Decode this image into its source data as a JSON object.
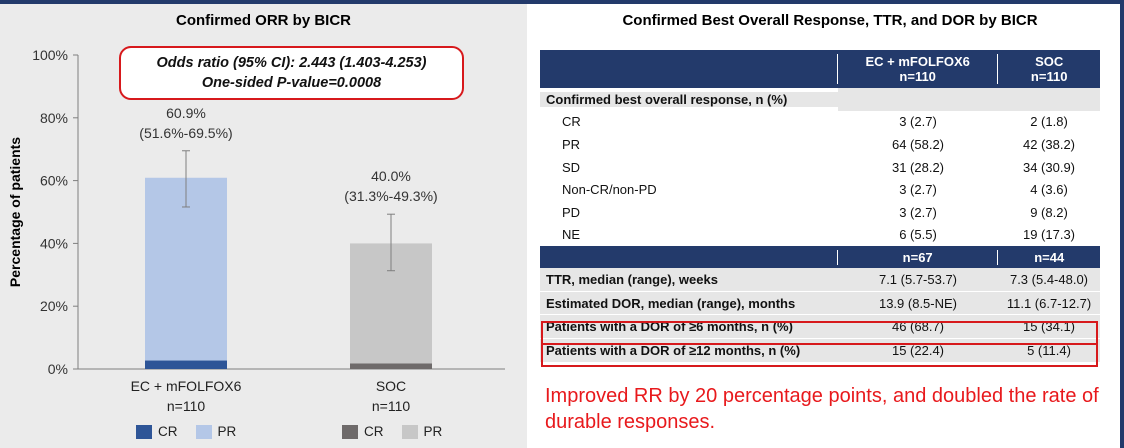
{
  "left": {
    "title": "Confirmed ORR by BICR",
    "odds_line1": "Odds ratio (95% CI): 2.443 (1.403-4.253)",
    "odds_line2": "One-sided P-value=0.0008",
    "legend_left": [
      "CR",
      "PR"
    ],
    "legend_right": [
      "CR",
      "PR"
    ]
  },
  "chart_data": {
    "type": "bar",
    "stacked": true,
    "title": "Confirmed ORR by BICR",
    "ylabel": "Percentage of patients",
    "ylim": [
      0,
      100
    ],
    "yticks": [
      "0%",
      "20%",
      "40%",
      "60%",
      "80%",
      "100%"
    ],
    "categories": [
      "EC + mFOLFOX6",
      "SOC"
    ],
    "category_sublabels": [
      "n=110",
      "n=110"
    ],
    "series": [
      {
        "name": "CR",
        "values": [
          2.7,
          1.8
        ],
        "colors": [
          "#2e5597",
          "#6e6a6a"
        ]
      },
      {
        "name": "PR",
        "values": [
          58.2,
          38.2
        ],
        "colors": [
          "#b4c7e7",
          "#c7c7c7"
        ]
      }
    ],
    "totals": [
      60.9,
      40.0
    ],
    "total_labels": [
      "60.9%",
      "40.0%"
    ],
    "ci": [
      [
        51.6,
        69.5
      ],
      [
        31.3,
        49.3
      ]
    ],
    "ci_labels": [
      "(51.6%-69.5%)",
      "(31.3%-49.3%)"
    ],
    "grid": false
  },
  "table": {
    "title": "Confirmed Best Overall Response, TTR, and DOR by BICR",
    "headers": [
      {
        "l1": "EC + mFOLFOX6",
        "l2": "n=110"
      },
      {
        "l1": "SOC",
        "l2": "n=110"
      }
    ],
    "section_label": "Confirmed best overall response, n (%)",
    "bor_rows": [
      {
        "label": "CR",
        "a": "3 (2.7)",
        "b": "2 (1.8)"
      },
      {
        "label": "PR",
        "a": "64 (58.2)",
        "b": "42 (38.2)"
      },
      {
        "label": "SD",
        "a": "31 (28.2)",
        "b": "34 (30.9)"
      },
      {
        "label": "Non-CR/non-PD",
        "a": "3 (2.7)",
        "b": "4 (3.6)"
      },
      {
        "label": "PD",
        "a": "3 (2.7)",
        "b": "9 (8.2)"
      },
      {
        "label": "NE",
        "a": "6 (5.5)",
        "b": "19 (17.3)"
      }
    ],
    "headers2": [
      "n=67",
      "n=44"
    ],
    "dor_rows": [
      {
        "label": "TTR, median (range), weeks",
        "a": "7.1 (5.7-53.7)",
        "b": "7.3 (5.4-48.0)"
      },
      {
        "label": "Estimated DOR, median (range), months",
        "a": "13.9 (8.5-NE)",
        "b": "11.1 (6.7-12.7)"
      },
      {
        "label": "Patients with a DOR of ≥6 months, n (%)",
        "a": "46 (68.7)",
        "b": "15 (34.1)"
      },
      {
        "label": "Patients with a DOR of ≥12 months, n (%)",
        "a": "15 (22.4)",
        "b": "5 (11.4)"
      }
    ],
    "conclusion": "Improved RR by 20 percentage points, and doubled the rate of durable responses."
  },
  "colors": {
    "navy": "#233a6b",
    "red": "#d7191c",
    "cr_ec": "#2e5597",
    "pr_ec": "#b4c7e7",
    "cr_soc": "#6e6a6a",
    "pr_soc": "#c7c7c7",
    "panel_bg": "#ebebeb"
  }
}
